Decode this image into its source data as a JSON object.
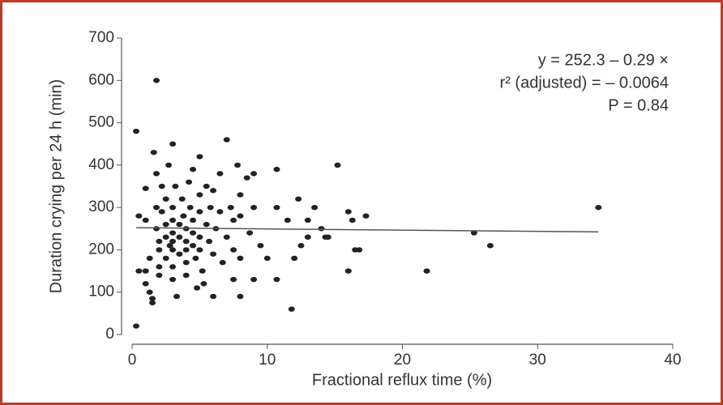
{
  "chart_data": {
    "type": "scatter",
    "x_label": "Fractional reflux time (%)",
    "y_label": "Duration crying per 24 h (min)",
    "annotations": [
      "y = 252.3 – 0.29 ×",
      "r² (adjusted) = – 0.0064",
      "P = 0.84"
    ],
    "xlim": [
      0,
      40
    ],
    "ylim": [
      0,
      700
    ],
    "xticks": [
      0,
      10,
      20,
      30,
      40
    ],
    "yticks": [
      0,
      100,
      200,
      300,
      400,
      500,
      600,
      700
    ],
    "color": "#222222",
    "x": [
      0.3,
      0.3,
      1.8,
      0.5,
      0.5,
      1,
      1,
      1,
      1,
      1.3,
      1.3,
      1.5,
      1.5,
      1.6,
      1.8,
      1.8,
      1.8,
      2,
      2,
      2,
      2,
      2.2,
      2.2,
      2.5,
      2.5,
      2.5,
      2.5,
      2.7,
      2.8,
      3,
      3,
      3,
      3,
      3,
      3,
      3,
      3,
      3.2,
      3.3,
      3.5,
      3.5,
      3.5,
      3.7,
      3.8,
      4,
      4,
      4,
      4,
      4,
      4.2,
      4.3,
      4.5,
      4.5,
      4.5,
      4.5,
      4.7,
      4.8,
      5,
      5,
      5,
      5,
      5,
      5.2,
      5.3,
      5.5,
      5.5,
      5.7,
      5.8,
      6,
      6,
      6,
      6.2,
      6.5,
      6.5,
      6.7,
      7,
      7,
      7.3,
      7.5,
      7.5,
      7.5,
      7.8,
      8,
      8,
      8,
      8,
      8.5,
      8.7,
      9,
      9,
      9,
      9.5,
      10,
      10.7,
      10.7,
      10.7,
      11.5,
      11.8,
      12,
      12.3,
      12.5,
      13,
      13,
      13.5,
      14,
      14.3,
      14.5,
      15.2,
      16,
      16,
      16.3,
      16.5,
      16.8,
      17.3,
      21.8,
      25.3,
      26.5,
      34.5
    ],
    "values": [
      20,
      480,
      600,
      280,
      150,
      345,
      270,
      150,
      120,
      180,
      100,
      85,
      75,
      430,
      380,
      300,
      250,
      220,
      200,
      160,
      140,
      350,
      290,
      320,
      260,
      230,
      180,
      400,
      210,
      450,
      300,
      270,
      240,
      220,
      200,
      160,
      130,
      350,
      90,
      260,
      230,
      190,
      320,
      280,
      250,
      220,
      200,
      170,
      140,
      360,
      300,
      390,
      270,
      240,
      210,
      180,
      110,
      420,
      330,
      290,
      230,
      200,
      150,
      120,
      350,
      260,
      220,
      300,
      340,
      190,
      90,
      250,
      380,
      290,
      170,
      460,
      230,
      300,
      270,
      200,
      130,
      400,
      330,
      280,
      180,
      90,
      370,
      240,
      380,
      300,
      130,
      210,
      180,
      390,
      300,
      130,
      270,
      60,
      180,
      320,
      210,
      270,
      230,
      300,
      250,
      230,
      230,
      400,
      290,
      150,
      270,
      200,
      200,
      280,
      150,
      240,
      210,
      300
    ],
    "fit_line": {
      "x": [
        0.3,
        34.5
      ],
      "values": [
        252.2,
        242.3
      ]
    }
  }
}
